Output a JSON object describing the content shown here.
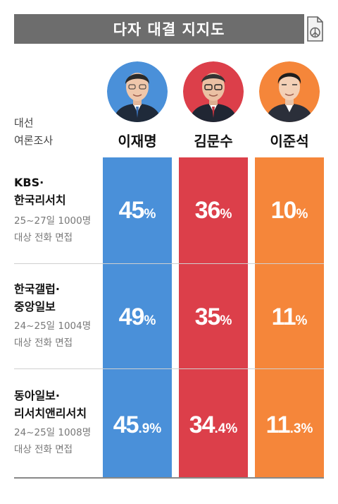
{
  "header": {
    "title": "다자 대결 지지도",
    "survey_label_line1": "대선",
    "survey_label_line2": "여론조사"
  },
  "icons": {
    "ballot": "ballot-box-icon"
  },
  "colors": {
    "title_bg": "#6d6d6d",
    "lee_jaemyung": "#4a90d9",
    "kim_moonsoo": "#dc3f4a",
    "lee_junseok": "#f5863a"
  },
  "candidates": [
    {
      "name": "이재명",
      "color": "#4a90d9"
    },
    {
      "name": "김문수",
      "color": "#dc3f4a"
    },
    {
      "name": "이준석",
      "color": "#f5863a"
    }
  ],
  "polls": [
    {
      "name_line1": "KBS·",
      "name_line2": "한국리서치",
      "detail_line1": "25~27일 1000명",
      "detail_line2": "대상 전화 면접",
      "values": [
        {
          "int": "45",
          "dec": "%"
        },
        {
          "int": "36",
          "dec": "%"
        },
        {
          "int": "10",
          "dec": "%"
        }
      ]
    },
    {
      "name_line1": "한국갤럽·",
      "name_line2": "중앙일보",
      "detail_line1": "24~25일 1004명",
      "detail_line2": "대상 전화 면접",
      "values": [
        {
          "int": "49",
          "dec": "%"
        },
        {
          "int": "35",
          "dec": "%"
        },
        {
          "int": "11",
          "dec": "%"
        }
      ]
    },
    {
      "name_line1": "동아일보·",
      "name_line2": "리서치앤리서치",
      "detail_line1": "24~25일 1008명",
      "detail_line2": "대상 전화 면접",
      "values": [
        {
          "int": "45",
          "dec": ".9%"
        },
        {
          "int": "34",
          "dec": ".4%"
        },
        {
          "int": "11",
          "dec": ".3%"
        }
      ]
    }
  ],
  "chart_data": {
    "type": "table",
    "title": "다자 대결 지지도",
    "categories": [
      "KBS·한국리서치",
      "한국갤럽·중앙일보",
      "동아일보·리서치앤리서치"
    ],
    "series": [
      {
        "name": "이재명",
        "values": [
          45,
          49,
          45.9
        ]
      },
      {
        "name": "김문수",
        "values": [
          36,
          35,
          34.4
        ]
      },
      {
        "name": "이준석",
        "values": [
          10,
          11,
          11.3
        ]
      }
    ],
    "unit": "%"
  }
}
